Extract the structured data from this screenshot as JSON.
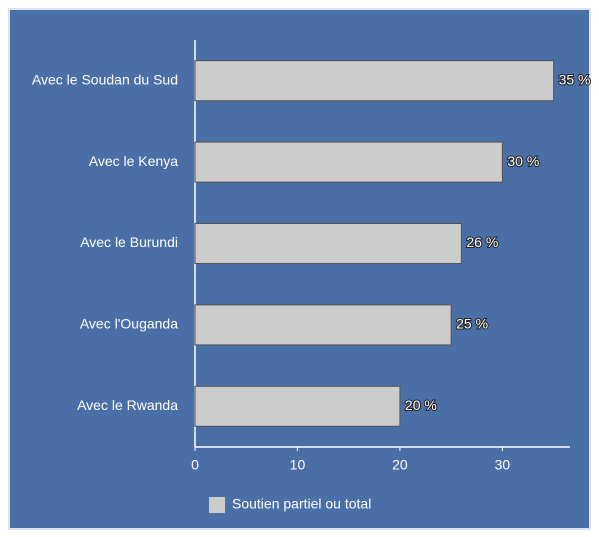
{
  "chart_data": {
    "type": "bar",
    "orientation": "horizontal",
    "categories": [
      "Avec le Soudan du Sud",
      "Avec le Kenya",
      "Avec le Burundi",
      "Avec l'Ouganda",
      "Avec le Rwanda"
    ],
    "series": [
      {
        "name": "Soutien partiel ou total",
        "color": "#cccccc",
        "values": [
          35,
          30,
          26,
          25,
          20
        ],
        "value_labels": [
          "35 %",
          "30 %",
          "26 %",
          "25 %",
          "20 %"
        ]
      }
    ],
    "xlim": [
      0,
      36.6
    ],
    "xticks": [
      0,
      10,
      20,
      30
    ],
    "grid": false,
    "legend": "bottom"
  }
}
